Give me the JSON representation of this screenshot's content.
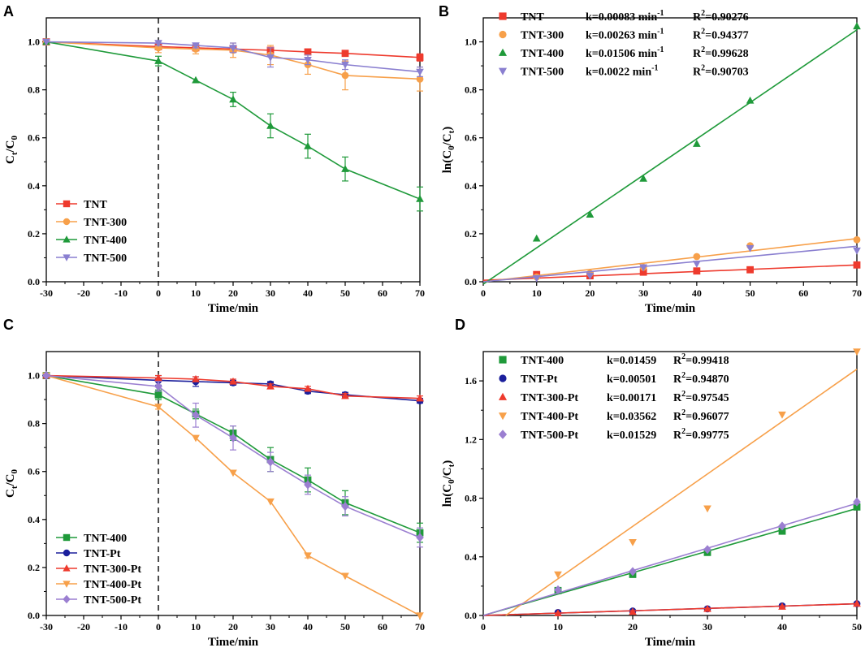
{
  "colors": {
    "red": "#ee3a2d",
    "orange": "#f7a04a",
    "green": "#1f9a3a",
    "purple": "#8a7fd0",
    "blue": "#1b1f9c",
    "diamond": "#9b7fd1"
  },
  "chart_data": [
    {
      "panel": "A",
      "type": "line",
      "xlabel": "Time/min",
      "ylabel": "Ct/C0",
      "xlim": [
        -30,
        70
      ],
      "ylim": [
        0,
        1.1
      ],
      "xticks": [
        -30,
        -20,
        -10,
        0,
        10,
        20,
        30,
        40,
        50,
        60,
        70
      ],
      "yticks": [
        0.0,
        0.2,
        0.4,
        0.6,
        0.8,
        1.0
      ],
      "ytick_labels": [
        "0.0",
        "0.2",
        "0.4",
        "0.6",
        "0.8",
        "1.0"
      ],
      "dark_line_x": 0,
      "legend_position": "bottom-left",
      "series": [
        {
          "name": "TNT",
          "color": "red",
          "marker": "square",
          "x": [
            -30,
            0,
            10,
            20,
            30,
            40,
            50,
            70
          ],
          "y": [
            1.0,
            0.98,
            0.975,
            0.97,
            0.965,
            0.958,
            0.952,
            0.935
          ],
          "err": [
            0,
            0.01,
            0.01,
            0.01,
            0.01,
            0.01,
            0.01,
            0.015
          ]
        },
        {
          "name": "TNT-300",
          "color": "orange",
          "marker": "circle",
          "x": [
            -30,
            0,
            10,
            20,
            30,
            40,
            50,
            70
          ],
          "y": [
            1.0,
            0.975,
            0.97,
            0.965,
            0.945,
            0.905,
            0.86,
            0.845
          ],
          "err": [
            0,
            0.02,
            0.02,
            0.03,
            0.04,
            0.04,
            0.06,
            0.05
          ]
        },
        {
          "name": "TNT-400",
          "color": "green",
          "marker": "triangle-up",
          "x": [
            -30,
            0,
            10,
            20,
            30,
            40,
            50,
            70
          ],
          "y": [
            1.0,
            0.92,
            0.84,
            0.76,
            0.65,
            0.565,
            0.47,
            0.345
          ],
          "err": [
            0,
            0.02,
            0,
            0.03,
            0.05,
            0.05,
            0.05,
            0.05
          ]
        },
        {
          "name": "TNT-500",
          "color": "purple",
          "marker": "triangle-down",
          "x": [
            -30,
            0,
            10,
            20,
            30,
            40,
            50,
            70
          ],
          "y": [
            1.0,
            0.995,
            0.985,
            0.975,
            0.935,
            0.925,
            0.905,
            0.875
          ],
          "err": [
            0,
            0.01,
            0.01,
            0.02,
            0.04,
            0.02,
            0.02,
            0.02
          ]
        }
      ]
    },
    {
      "panel": "B",
      "type": "scatter",
      "xlabel": "Time/min",
      "ylabel": "ln(C0/Ct)",
      "xlim": [
        0,
        70
      ],
      "ylim": [
        0,
        1.1
      ],
      "xticks": [
        0,
        10,
        20,
        30,
        40,
        50,
        60,
        70
      ],
      "yticks": [
        0.0,
        0.2,
        0.4,
        0.6,
        0.8,
        1.0
      ],
      "ytick_labels": [
        "0.0",
        "0.2",
        "0.4",
        "0.6",
        "0.8",
        "1.0"
      ],
      "legend_position": "top-left",
      "series": [
        {
          "name": "TNT",
          "k_text": "k=0.00083 min",
          "r2_text": "=0.90276",
          "color": "red",
          "marker": "square",
          "x": [
            0,
            10,
            20,
            30,
            40,
            50,
            70
          ],
          "y": [
            0.01,
            0.03,
            0.025,
            0.04,
            0.045,
            0.05,
            0.07
          ],
          "fit": [
            [
              0,
              0.006
            ],
            [
              70,
              0.07
            ]
          ]
        },
        {
          "name": "TNT-300",
          "k_text": "k=0.00263 min",
          "r2_text": "=0.94377",
          "color": "orange",
          "marker": "circle",
          "x": [
            0,
            10,
            20,
            30,
            40,
            50,
            70
          ],
          "y": [
            0.01,
            0.02,
            0.035,
            0.06,
            0.105,
            0.15,
            0.175
          ],
          "fit": [
            [
              0,
              0.0
            ],
            [
              70,
              0.18
            ]
          ]
        },
        {
          "name": "TNT-400",
          "k_text": "k=0.01506 min",
          "r2_text": "=0.99628",
          "color": "green",
          "marker": "triangle-up",
          "x": [
            0,
            10,
            20,
            30,
            40,
            50,
            70
          ],
          "y": [
            0.0,
            0.18,
            0.28,
            0.43,
            0.575,
            0.755,
            1.065
          ],
          "fit": [
            [
              0,
              -0.01
            ],
            [
              70,
              1.05
            ]
          ]
        },
        {
          "name": "TNT-500",
          "k_text": "k=0.0022 min",
          "r2_text": "=0.90703",
          "color": "purple",
          "marker": "triangle-down",
          "x": [
            0,
            10,
            20,
            30,
            40,
            50,
            70
          ],
          "y": [
            0.005,
            0.015,
            0.025,
            0.06,
            0.075,
            0.14,
            0.13
          ],
          "fit": [
            [
              0,
              0.0
            ],
            [
              70,
              0.148
            ]
          ]
        }
      ]
    },
    {
      "panel": "C",
      "type": "line",
      "xlabel": "Time/min",
      "ylabel": "Ct/C0",
      "xlim": [
        -30,
        70
      ],
      "ylim": [
        0,
        1.1
      ],
      "xticks": [
        -30,
        -20,
        -10,
        0,
        10,
        20,
        30,
        40,
        50,
        60,
        70
      ],
      "yticks": [
        0.0,
        0.2,
        0.4,
        0.6,
        0.8,
        1.0
      ],
      "ytick_labels": [
        "0.0",
        "0.2",
        "0.4",
        "0.6",
        "0.8",
        "1.0"
      ],
      "dark_line_x": 0,
      "legend_position": "bottom-left",
      "series": [
        {
          "name": "TNT-400",
          "color": "green",
          "marker": "square",
          "x": [
            -30,
            0,
            10,
            20,
            30,
            40,
            50,
            70
          ],
          "y": [
            1.0,
            0.92,
            0.84,
            0.76,
            0.65,
            0.565,
            0.47,
            0.345
          ],
          "err": [
            0,
            0.02,
            0.02,
            0.03,
            0.05,
            0.05,
            0.05,
            0.04
          ]
        },
        {
          "name": "TNT-Pt",
          "color": "blue",
          "marker": "circle",
          "x": [
            -30,
            0,
            10,
            20,
            30,
            40,
            50,
            70
          ],
          "y": [
            1.0,
            0.98,
            0.975,
            0.97,
            0.965,
            0.935,
            0.92,
            0.895
          ],
          "err": [
            0,
            0.02,
            0.02,
            0.01,
            0.01,
            0.01,
            0.01,
            0.01
          ]
        },
        {
          "name": "TNT-300-Pt",
          "color": "red",
          "marker": "triangle-up",
          "x": [
            -30,
            0,
            10,
            20,
            30,
            40,
            50,
            70
          ],
          "y": [
            1.0,
            0.99,
            0.985,
            0.975,
            0.955,
            0.945,
            0.915,
            0.905
          ],
          "err": [
            0,
            0.01,
            0.01,
            0.01,
            0.01,
            0.01,
            0.01,
            0.01
          ]
        },
        {
          "name": "TNT-400-Pt",
          "color": "orange",
          "marker": "triangle-down",
          "x": [
            -30,
            0,
            10,
            20,
            30,
            40,
            50,
            70
          ],
          "y": [
            1.0,
            0.87,
            0.74,
            0.595,
            0.475,
            0.25,
            0.165,
            0.0
          ],
          "err": [
            0,
            0.01,
            0,
            0,
            0,
            0.01,
            0,
            0
          ]
        },
        {
          "name": "TNT-500-Pt",
          "color": "diamond",
          "marker": "diamond",
          "x": [
            -30,
            0,
            10,
            20,
            30,
            40,
            50,
            70
          ],
          "y": [
            1.0,
            0.955,
            0.835,
            0.74,
            0.64,
            0.545,
            0.455,
            0.325
          ],
          "err": [
            0,
            0.02,
            0.05,
            0.05,
            0.04,
            0.04,
            0.04,
            0.04
          ]
        }
      ]
    },
    {
      "panel": "D",
      "type": "scatter",
      "xlabel": "Time/min",
      "ylabel": "ln(C0/Ct)",
      "xlim": [
        0,
        50
      ],
      "ylim": [
        0,
        1.8
      ],
      "xticks": [
        0,
        10,
        20,
        30,
        40,
        50
      ],
      "yticks": [
        0.0,
        0.4,
        0.8,
        1.2,
        1.6
      ],
      "ytick_labels": [
        "0.0",
        "0.4",
        "0.8",
        "1.2",
        "1.6"
      ],
      "legend_position": "top-left",
      "series": [
        {
          "name": "TNT-400",
          "k_text": "k=0.01459",
          "r2_text": "=0.99418",
          "color": "green",
          "marker": "square",
          "x": [
            0,
            10,
            20,
            30,
            40,
            50
          ],
          "y": [
            0.0,
            0.17,
            0.28,
            0.43,
            0.575,
            0.74
          ],
          "fit": [
            [
              0,
              0.0
            ],
            [
              50,
              0.73
            ]
          ]
        },
        {
          "name": "TNT-Pt",
          "k_text": "k=0.00501",
          "r2_text": "=0.94870",
          "color": "blue",
          "marker": "circle",
          "x": [
            0,
            10,
            20,
            30,
            40,
            50
          ],
          "y": [
            0.0,
            0.02,
            0.03,
            0.045,
            0.065,
            0.08
          ],
          "fit": [
            [
              0,
              0.0
            ],
            [
              50,
              0.08
            ]
          ]
        },
        {
          "name": "TNT-300-Pt",
          "k_text": "k=0.00171",
          "r2_text": "=0.97545",
          "color": "red",
          "marker": "triangle-up",
          "x": [
            0,
            10,
            20,
            30,
            40,
            50
          ],
          "y": [
            0.0,
            0.015,
            0.025,
            0.045,
            0.06,
            0.08
          ],
          "fit": [
            [
              0,
              0.0
            ],
            [
              50,
              0.08
            ]
          ]
        },
        {
          "name": "TNT-400-Pt",
          "k_text": "k=0.03562",
          "r2_text": "=0.96077",
          "color": "orange",
          "marker": "triangle-down",
          "x": [
            0,
            10,
            20,
            30,
            40,
            50
          ],
          "y": [
            0.0,
            0.28,
            0.5,
            0.73,
            1.37,
            1.8
          ],
          "fit": [
            [
              3,
              0.0
            ],
            [
              50,
              1.68
            ]
          ]
        },
        {
          "name": "TNT-500-Pt",
          "k_text": "k=0.01529",
          "r2_text": "=0.99775",
          "color": "diamond",
          "marker": "diamond",
          "x": [
            0,
            10,
            20,
            30,
            40,
            50
          ],
          "y": [
            0.0,
            0.175,
            0.3,
            0.45,
            0.61,
            0.775
          ],
          "fit": [
            [
              0,
              0.0
            ],
            [
              50,
              0.765
            ]
          ]
        }
      ]
    }
  ]
}
